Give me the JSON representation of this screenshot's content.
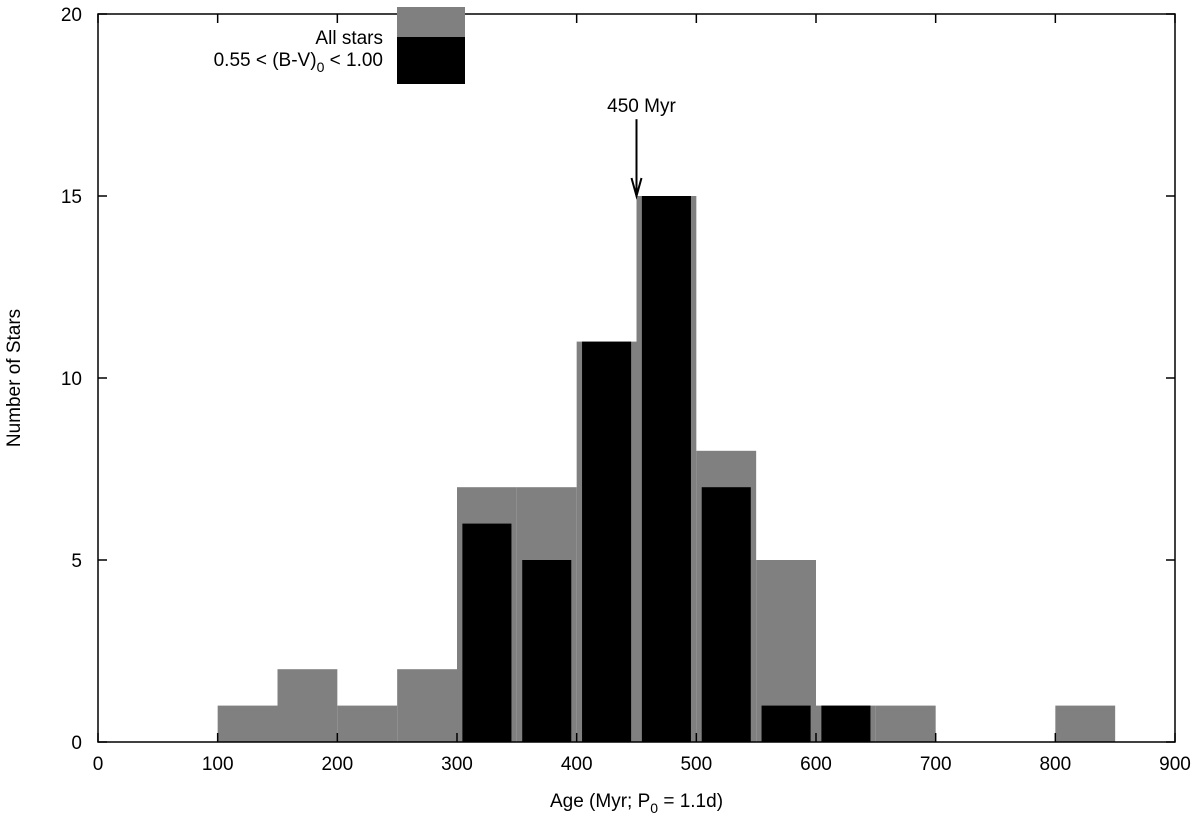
{
  "chart_data": {
    "type": "bar",
    "title": "",
    "xlabel": "Age (Myr; P",
    "xlabel_sub": "0",
    "xlabel_tail": " = 1.1d)",
    "ylabel": "Number of Stars",
    "xlim": [
      0,
      900
    ],
    "ylim": [
      0,
      20
    ],
    "xticks": [
      0,
      100,
      200,
      300,
      400,
      500,
      600,
      700,
      800,
      900
    ],
    "yticks": [
      0,
      5,
      10,
      15,
      20
    ],
    "bin_width": 50,
    "series": [
      {
        "name": "All stars",
        "color": "#808080",
        "bins": [
          {
            "x0": 100,
            "value": 1
          },
          {
            "x0": 150,
            "value": 2
          },
          {
            "x0": 200,
            "value": 1
          },
          {
            "x0": 250,
            "value": 2
          },
          {
            "x0": 300,
            "value": 7
          },
          {
            "x0": 350,
            "value": 7
          },
          {
            "x0": 400,
            "value": 11
          },
          {
            "x0": 450,
            "value": 15
          },
          {
            "x0": 500,
            "value": 8
          },
          {
            "x0": 550,
            "value": 5
          },
          {
            "x0": 600,
            "value": 1
          },
          {
            "x0": 650,
            "value": 1
          },
          {
            "x0": 800,
            "value": 1
          }
        ]
      },
      {
        "name": "0.55 < (B-V)",
        "name_sub": "0",
        "name_tail": " < 1.00",
        "color": "#000000",
        "bins": [
          {
            "x0": 300,
            "value": 6
          },
          {
            "x0": 350,
            "value": 5
          },
          {
            "x0": 400,
            "value": 11
          },
          {
            "x0": 450,
            "value": 15
          },
          {
            "x0": 500,
            "value": 7
          },
          {
            "x0": 550,
            "value": 1
          },
          {
            "x0": 600,
            "value": 1
          }
        ]
      }
    ],
    "annotation": {
      "text": "450 Myr",
      "x": 450,
      "y_tip": 15,
      "y_tail": 17
    },
    "legend_position": "top-left",
    "grid": false
  }
}
